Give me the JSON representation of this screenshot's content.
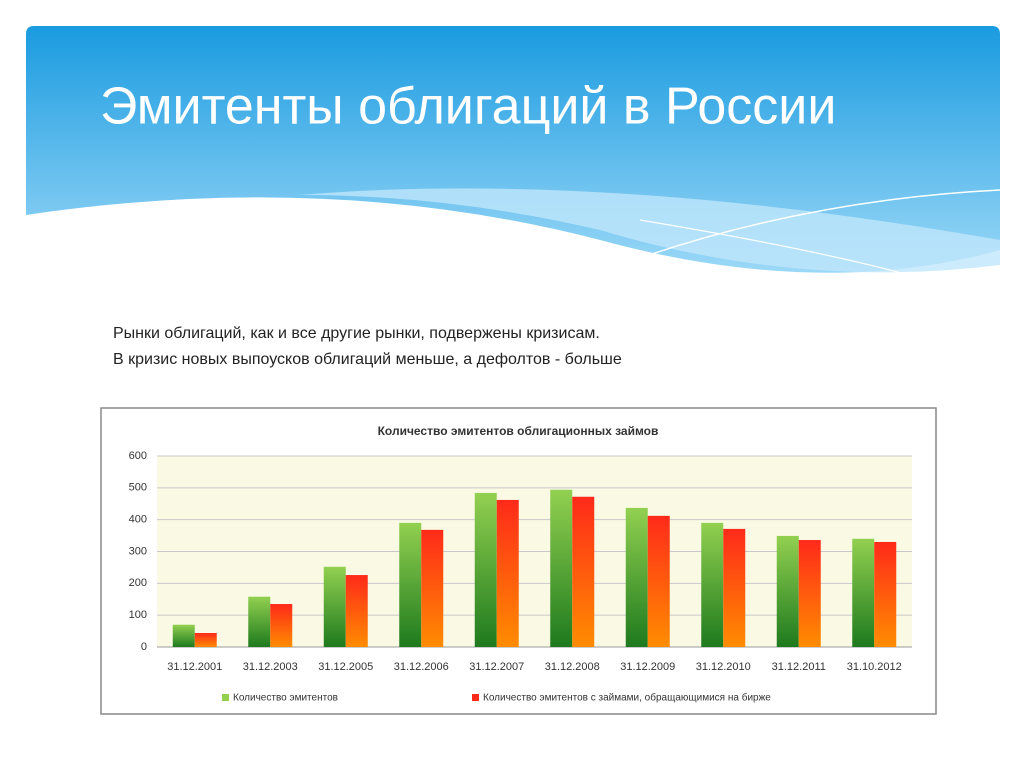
{
  "slide": {
    "title": "Эмитенты облигаций в России",
    "text": [
      "Рынки облигаций, как и все другие рынки, подвержены кризисам.",
      "В кризис новых выпоусков облигаций меньше, а дефолтов - больше"
    ]
  },
  "chart_data": {
    "type": "bar",
    "title": "Количество эмитентов облигационных займов",
    "categories": [
      "31.12.2001",
      "31.12.2003",
      "31.12.2005",
      "31.12.2006",
      "31.12.2007",
      "31.12.2008",
      "31.12.2009",
      "31.12.2010",
      "31.12.2011",
      "31.10.2012"
    ],
    "series": [
      {
        "name": "Количество эмитентов",
        "color": "#92d050",
        "values": [
          70,
          158,
          252,
          390,
          484,
          494,
          437,
          390,
          349,
          340
        ]
      },
      {
        "name": "Количество эмитентов с займами, обращающимися на бирже",
        "color": "#ff2a1a",
        "values": [
          44,
          135,
          226,
          368,
          462,
          472,
          412,
          371,
          336,
          330
        ]
      }
    ],
    "ylim": [
      0,
      600
    ],
    "yticks": [
      0,
      100,
      200,
      300,
      400,
      500,
      600
    ],
    "grid": true,
    "legend": "bottom"
  }
}
